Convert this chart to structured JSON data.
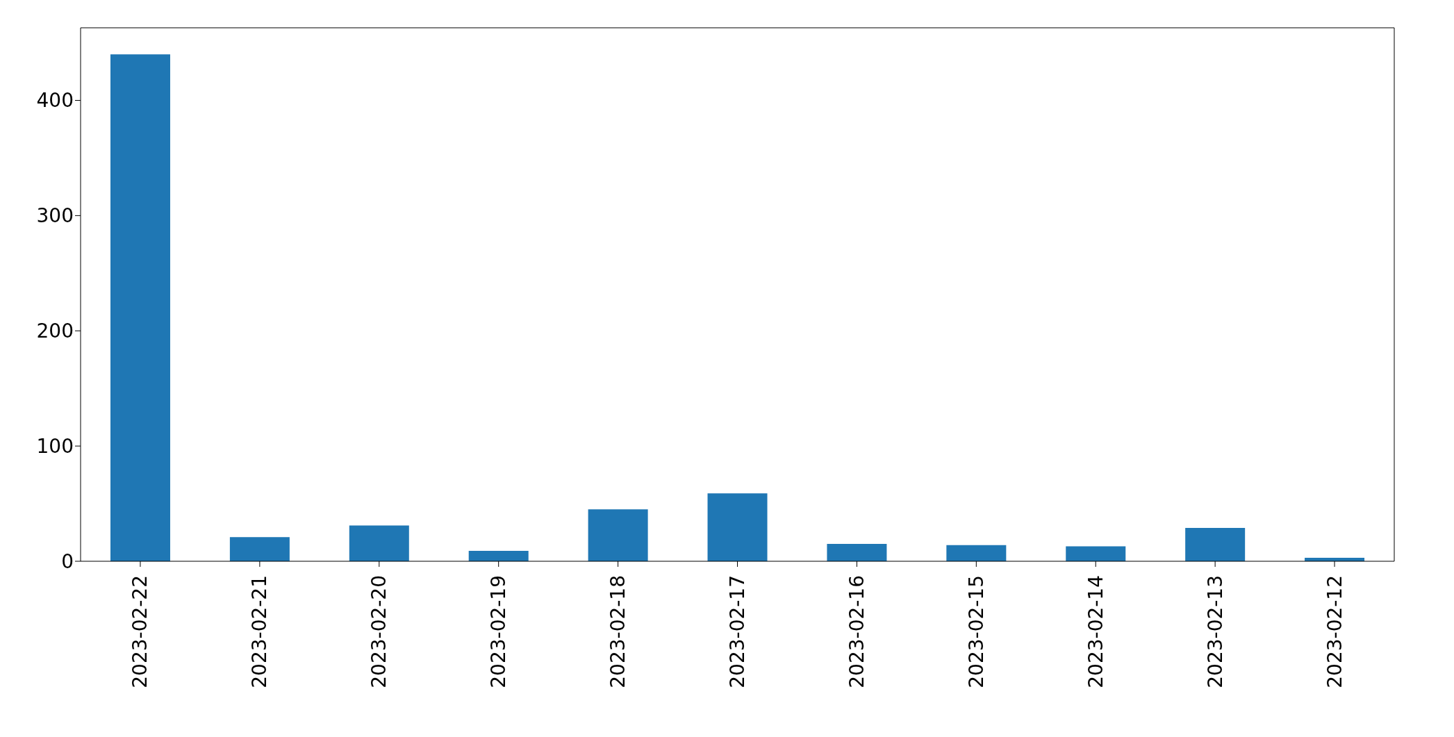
{
  "chart_data": {
    "type": "bar",
    "categories": [
      "2023-02-22",
      "2023-02-21",
      "2023-02-20",
      "2023-02-19",
      "2023-02-18",
      "2023-02-17",
      "2023-02-16",
      "2023-02-15",
      "2023-02-14",
      "2023-02-13",
      "2023-02-12"
    ],
    "values": [
      440,
      21,
      31,
      9,
      45,
      59,
      15,
      14,
      13,
      29,
      3
    ],
    "color": "#1f77b4",
    "ylim": [
      0,
      463
    ],
    "yticks": [
      0,
      100,
      200,
      300,
      400
    ],
    "grid": false,
    "legend": false
  }
}
